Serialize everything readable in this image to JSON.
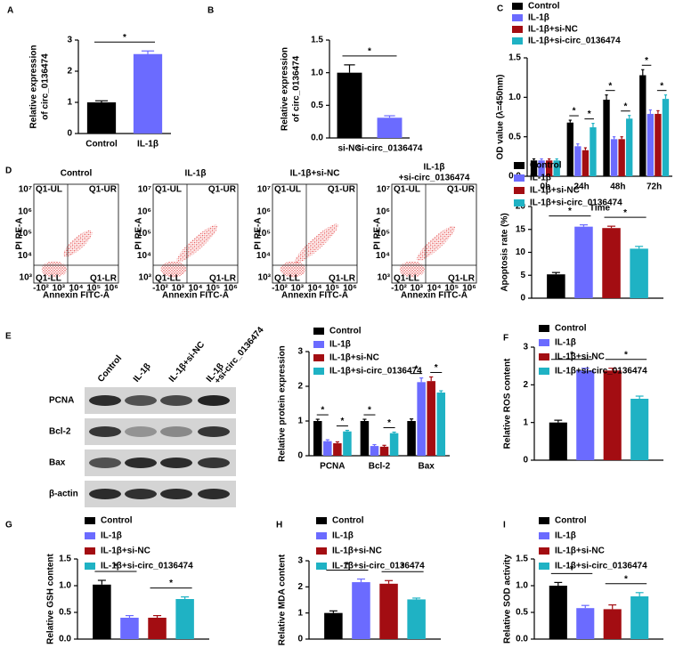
{
  "chart_data": [
    {
      "panel": "A",
      "type": "bar",
      "ylabel": [
        "Relative expression",
        "of circ_0136474"
      ],
      "categories": [
        "Control",
        "IL-1β"
      ],
      "values": [
        1.0,
        2.55
      ],
      "errors": [
        0.05,
        0.1
      ],
      "colors": [
        "#000000",
        "#6b6bff"
      ],
      "ylim": [
        0,
        3
      ],
      "yticks": [
        0,
        1,
        2,
        3
      ],
      "significance": [
        "*"
      ]
    },
    {
      "panel": "B",
      "type": "bar",
      "ylabel": [
        "Relative expression",
        "of circ_0136474"
      ],
      "categories": [
        "si-NC",
        "si-circ_0136474"
      ],
      "values": [
        1.0,
        0.31
      ],
      "errors": [
        0.12,
        0.03
      ],
      "colors": [
        "#000000",
        "#6b6bff"
      ],
      "ylim": [
        0,
        1.5
      ],
      "yticks": [
        {
          "value": 0,
          "label": "0.0"
        },
        0.5,
        {
          "value": 1,
          "label": "1.0"
        },
        1.5
      ],
      "significance": [
        "*"
      ]
    },
    {
      "panel": "C",
      "type": "bar",
      "ylabel": "OD value (λ=450nm)",
      "xlabel": "Time",
      "categories": [
        "0h",
        "24h",
        "48h",
        "72h"
      ],
      "series": [
        {
          "name": "Control",
          "color": "#000000",
          "values": [
            0.2,
            0.68,
            0.97,
            1.28
          ],
          "errors": [
            0.02,
            0.03,
            0.06,
            0.07
          ]
        },
        {
          "name": "IL-1β",
          "color": "#6b6bff",
          "values": [
            0.2,
            0.38,
            0.47,
            0.79
          ],
          "errors": [
            0.02,
            0.03,
            0.03,
            0.05
          ]
        },
        {
          "name": "IL-1β+si-NC",
          "color": "#a30d12",
          "values": [
            0.2,
            0.33,
            0.47,
            0.79
          ],
          "errors": [
            0.02,
            0.03,
            0.03,
            0.04
          ]
        },
        {
          "name": "IL-1β+si-circ_0136474",
          "color": "#1fb2c4",
          "values": [
            0.2,
            0.62,
            0.73,
            0.98
          ],
          "errors": [
            0.02,
            0.05,
            0.04,
            0.05
          ]
        }
      ],
      "ylim": [
        0,
        1.5
      ],
      "yticks": [
        {
          "value": 0,
          "label": "0.0"
        },
        0.5,
        {
          "value": 1,
          "label": "1.0"
        },
        1.5
      ],
      "significance": [
        "*",
        "*",
        "*",
        "*",
        "*",
        "*"
      ]
    },
    {
      "type": "bar",
      "ylabel": "Apoptosis rate (%)",
      "categories": [
        null
      ],
      "series": [
        {
          "name": "Control",
          "color": "#000000",
          "values": [
            5.2
          ],
          "errors": [
            0.4
          ]
        },
        {
          "name": "IL-1β",
          "color": "#6b6bff",
          "values": [
            15.6
          ],
          "errors": [
            0.4
          ]
        },
        {
          "name": "IL-1β+si-NC",
          "color": "#a30d12",
          "values": [
            15.3
          ],
          "errors": [
            0.4
          ]
        },
        {
          "name": "IL-1β+si-circ_0136474",
          "color": "#1fb2c4",
          "values": [
            10.8
          ],
          "errors": [
            0.5
          ]
        }
      ],
      "ylim": [
        0,
        20
      ],
      "yticks": [
        0,
        5,
        10,
        15,
        20
      ],
      "significance": [
        "*",
        "*"
      ]
    },
    {
      "type": "bar",
      "ylabel": "Relative protein expression",
      "categories": [
        "PCNA",
        "Bcl-2",
        "Bax"
      ],
      "series": [
        {
          "name": "Control",
          "color": "#000000",
          "values": [
            1.0,
            1.0,
            1.0
          ],
          "errors": [
            0.05,
            0.05,
            0.06
          ]
        },
        {
          "name": "IL-1β",
          "color": "#6b6bff",
          "values": [
            0.42,
            0.28,
            2.12
          ],
          "errors": [
            0.04,
            0.04,
            0.12
          ]
        },
        {
          "name": "IL-1β+si-NC",
          "color": "#a30d12",
          "values": [
            0.36,
            0.26,
            2.15
          ],
          "errors": [
            0.04,
            0.04,
            0.12
          ]
        },
        {
          "name": "IL-1β+si-circ_0136474",
          "color": "#1fb2c4",
          "values": [
            0.7,
            0.65,
            1.82
          ],
          "errors": [
            0.03,
            0.03,
            0.05
          ]
        }
      ],
      "ylim": [
        0,
        3
      ],
      "yticks": [
        0,
        1,
        2,
        3
      ],
      "significance": [
        "*",
        "*",
        "*",
        "*",
        "*",
        "*"
      ]
    },
    {
      "panel": "F",
      "type": "bar",
      "ylabel": "Relative ROS content",
      "categories": [
        null
      ],
      "series": [
        {
          "name": "Control",
          "color": "#000000",
          "values": [
            1.0
          ],
          "errors": [
            0.06
          ]
        },
        {
          "name": "IL-1β",
          "color": "#6b6bff",
          "values": [
            2.38
          ],
          "errors": [
            0.06
          ]
        },
        {
          "name": "IL-1β+si-NC",
          "color": "#a30d12",
          "values": [
            2.38
          ],
          "errors": [
            0.06
          ]
        },
        {
          "name": "IL-1β+si-circ_0136474",
          "color": "#1fb2c4",
          "values": [
            1.63
          ],
          "errors": [
            0.07
          ]
        }
      ],
      "ylim": [
        0,
        3
      ],
      "yticks": [
        0,
        1,
        2,
        3
      ],
      "significance": [
        "*",
        "*"
      ]
    },
    {
      "panel": "G",
      "type": "bar",
      "ylabel": "Relative GSH content",
      "categories": [
        null
      ],
      "series": [
        {
          "name": "Control",
          "color": "#000000",
          "values": [
            1.02
          ],
          "errors": [
            0.08
          ]
        },
        {
          "name": "IL-1β",
          "color": "#6b6bff",
          "values": [
            0.4
          ],
          "errors": [
            0.04
          ]
        },
        {
          "name": "IL-1β+si-NC",
          "color": "#a30d12",
          "values": [
            0.4
          ],
          "errors": [
            0.04
          ]
        },
        {
          "name": "IL-1β+si-circ_0136474",
          "color": "#1fb2c4",
          "values": [
            0.75
          ],
          "errors": [
            0.04
          ]
        }
      ],
      "ylim": [
        0,
        1.5
      ],
      "yticks": [
        {
          "value": 0,
          "label": "0.0"
        },
        0.5,
        {
          "value": 1,
          "label": "1.0"
        },
        1.5
      ],
      "significance": [
        "*",
        "*"
      ]
    },
    {
      "panel": "H",
      "type": "bar",
      "ylabel": "Relative MDA content",
      "categories": [
        null
      ],
      "series": [
        {
          "name": "Control",
          "color": "#000000",
          "values": [
            1.0
          ],
          "errors": [
            0.08
          ]
        },
        {
          "name": "IL-1β",
          "color": "#6b6bff",
          "values": [
            2.18
          ],
          "errors": [
            0.12
          ]
        },
        {
          "name": "IL-1β+si-NC",
          "color": "#a30d12",
          "values": [
            2.12
          ],
          "errors": [
            0.12
          ]
        },
        {
          "name": "IL-1β+si-circ_0136474",
          "color": "#1fb2c4",
          "values": [
            1.52
          ],
          "errors": [
            0.05
          ]
        }
      ],
      "ylim": [
        0,
        3
      ],
      "yticks": [
        0,
        1,
        2,
        3
      ],
      "significance": [
        "*",
        "*"
      ]
    },
    {
      "panel": "I",
      "type": "bar",
      "ylabel": "Relative SOD activity",
      "categories": [
        null
      ],
      "series": [
        {
          "name": "Control",
          "color": "#000000",
          "values": [
            1.0
          ],
          "errors": [
            0.06
          ]
        },
        {
          "name": "IL-1β",
          "color": "#6b6bff",
          "values": [
            0.58
          ],
          "errors": [
            0.05
          ]
        },
        {
          "name": "IL-1β+si-NC",
          "color": "#a30d12",
          "values": [
            0.56
          ],
          "errors": [
            0.08
          ]
        },
        {
          "name": "IL-1β+si-circ_0136474",
          "color": "#1fb2c4",
          "values": [
            0.8
          ],
          "errors": [
            0.07
          ]
        }
      ],
      "ylim": [
        0,
        1.5
      ],
      "yticks": [
        {
          "value": 0,
          "label": "0.0"
        },
        0.5,
        {
          "value": 1,
          "label": "1.0"
        },
        1.5
      ],
      "significance": [
        "*",
        "*"
      ]
    }
  ],
  "flow": {
    "panel": "D",
    "titles": [
      "Control",
      "IL-1β",
      "IL-1β+si-NC",
      [
        "IL-1β",
        "+si-circ_0136474"
      ]
    ],
    "quadrants": [
      "Q1-UL",
      "Q1-UR",
      "Q1-LL",
      "Q1-LR"
    ],
    "xlabel": "Annexin FITC-A",
    "ylabel": "PI PE-A",
    "xticks": [
      "-10²",
      "10³",
      "10⁴",
      "10⁵",
      "10⁶"
    ],
    "yticks": [
      "10⁷",
      "10⁶",
      "10⁵",
      "10⁴",
      "10³"
    ]
  },
  "blot": {
    "panel": "E",
    "lanes": [
      "Control",
      "IL-1β",
      "IL-1β+si-NC",
      [
        "IL-1β",
        "+si-circ_0136474"
      ]
    ],
    "proteins": [
      "PCNA",
      "Bcl-2",
      "Bax",
      "β-actin"
    ]
  }
}
